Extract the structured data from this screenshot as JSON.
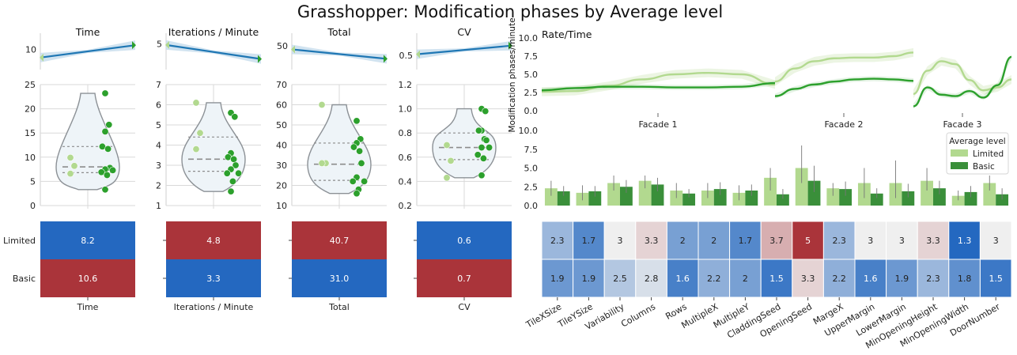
{
  "title": "Grasshopper: Modification phases by Average level",
  "colors": {
    "limited": "#b2d98f",
    "basic": "#2ca02c",
    "basic_bar": "#3a8f3a",
    "trend": "#1f77b4",
    "trend_band": "#c6dcec",
    "violin_fill": "#eef4f8",
    "violin_stroke": "#8c9196",
    "heat_red": "#aa343a",
    "heat_blue": "#2468c0",
    "heat_mid": "#efefef"
  },
  "chart_data": [
    {
      "id": "time",
      "type": "line",
      "title": "Time",
      "trend": {
        "x": [
          0,
          1
        ],
        "y": [
          9.2,
          10.4
        ]
      },
      "trend_ylim": [
        8.5,
        11.1
      ],
      "trend_yticks": [
        {
          "v": 10,
          "label": "10"
        }
      ],
      "violin_ylim": [
        0,
        25
      ],
      "violin_yticks": [
        "0",
        "5",
        "10",
        "15",
        "20",
        "25"
      ],
      "violin_tick_values": [
        0,
        5,
        10,
        15,
        20,
        25
      ],
      "violin_quartiles": [
        6.8,
        8.0,
        12.2
      ],
      "points_limited": [
        9.9,
        8.2,
        6.6
      ],
      "points_basic": [
        23.2,
        16.7,
        15.3,
        12.2,
        11.7,
        7.8,
        7.5,
        7.3,
        6.9,
        6.3,
        3.3
      ],
      "heat": {
        "rows": [
          "Limited",
          "Basic"
        ],
        "values": [
          8.2,
          10.6
        ],
        "labels": [
          "8.2",
          "10.6"
        ],
        "colors": [
          "#2468c0",
          "#aa343a"
        ]
      },
      "xlabel": "Time"
    },
    {
      "id": "ipm",
      "type": "line",
      "title": "Iterations / Minute",
      "trend": {
        "x": [
          0,
          1
        ],
        "y": [
          4.9,
          3.7
        ]
      },
      "trend_ylim": [
        3.2,
        5.5
      ],
      "trend_yticks": [
        {
          "v": 5,
          "label": "5"
        }
      ],
      "violin_ylim": [
        1,
        7
      ],
      "violin_yticks": [
        "1",
        "2",
        "3",
        "4",
        "5",
        "6",
        "7"
      ],
      "violin_tick_values": [
        1,
        2,
        3,
        4,
        5,
        6,
        7
      ],
      "violin_quartiles": [
        2.7,
        3.3,
        4.4
      ],
      "points_limited": [
        6.1,
        4.6,
        3.8
      ],
      "points_basic": [
        5.6,
        5.4,
        3.6,
        3.4,
        3.3,
        3.0,
        2.8,
        2.6,
        2.6,
        2.2,
        1.7
      ],
      "heat": {
        "rows": [
          "Limited",
          "Basic"
        ],
        "values": [
          4.8,
          3.3
        ],
        "labels": [
          "4.8",
          "3.3"
        ],
        "colors": [
          "#aa343a",
          "#2468c0"
        ]
      },
      "xlabel": "Iterations / Minute"
    },
    {
      "id": "total",
      "type": "line",
      "title": "Total",
      "trend": {
        "x": [
          0,
          1
        ],
        "y": [
          47.5,
          40.5
        ]
      },
      "trend_ylim": [
        36,
        56
      ],
      "trend_yticks": [
        {
          "v": 50,
          "label": "50"
        }
      ],
      "violin_ylim": [
        10,
        70
      ],
      "violin_yticks": [
        "10",
        "20",
        "30",
        "40",
        "50",
        "60",
        "70"
      ],
      "violin_tick_values": [
        10,
        20,
        30,
        40,
        50,
        60,
        70
      ],
      "violin_quartiles": [
        22.5,
        30.5,
        41.0
      ],
      "points_limited": [
        60.0,
        31.0,
        31.0
      ],
      "points_basic": [
        52.0,
        43.0,
        41.0,
        39.0,
        37.0,
        31.0,
        24.0,
        22.0,
        22.0,
        18.0,
        16.0
      ],
      "heat": {
        "rows": [
          "Limited",
          "Basic"
        ],
        "values": [
          40.7,
          31.0
        ],
        "labels": [
          "40.7",
          "31.0"
        ],
        "colors": [
          "#aa343a",
          "#2468c0"
        ]
      },
      "xlabel": "Total"
    },
    {
      "id": "cv",
      "type": "line",
      "title": "CV",
      "trend": {
        "x": [
          0,
          1
        ],
        "y": [
          0.51,
          0.6
        ]
      },
      "trend_ylim": [
        0.4,
        0.68
      ],
      "trend_yticks": [
        {
          "v": 0.5,
          "label": "0.5"
        }
      ],
      "violin_ylim": [
        0.2,
        1.2
      ],
      "violin_yticks": [
        "0.2",
        "0.4",
        "0.6",
        "0.8",
        "1.0",
        "1.2"
      ],
      "violin_tick_values": [
        0.2,
        0.4,
        0.6,
        0.8,
        1.0,
        1.2
      ],
      "violin_quartiles": [
        0.58,
        0.68,
        0.8
      ],
      "points_limited": [
        0.7,
        0.57,
        0.43
      ],
      "points_basic": [
        1.0,
        0.98,
        0.82,
        0.82,
        0.75,
        0.74,
        0.68,
        0.68,
        0.62,
        0.59,
        0.45
      ],
      "heat": {
        "rows": [
          "Limited",
          "Basic"
        ],
        "values": [
          0.6,
          0.7
        ],
        "labels": [
          "0.6",
          "0.7"
        ],
        "colors": [
          "#2468c0",
          "#aa343a"
        ]
      },
      "xlabel": "CV"
    },
    {
      "id": "rate",
      "type": "line",
      "title": "Rate/Time",
      "ylabel": "Modification phases/minute",
      "ylim": [
        0,
        10
      ],
      "yticks": [
        "0.0",
        "2.5",
        "5.0",
        "7.5",
        "10.0"
      ],
      "ytick_values": [
        0,
        2.5,
        5.0,
        7.5,
        10.0
      ],
      "facets": [
        {
          "label": "Facade 1",
          "limited": [
            2.6,
            2.7,
            3.4,
            4.3,
            5.0,
            5.2,
            5.0,
            3.6
          ],
          "basic": [
            2.8,
            3.1,
            3.3,
            3.3,
            3.2,
            3.2,
            3.3,
            3.8
          ]
        },
        {
          "label": "Facade 2",
          "limited": [
            4.0,
            5.8,
            6.8,
            7.2,
            7.3,
            7.3,
            7.5,
            8.0
          ],
          "basic": [
            2.0,
            3.0,
            3.6,
            4.0,
            4.3,
            4.4,
            4.3,
            4.1
          ]
        },
        {
          "label": "Facade 3",
          "limited": [
            2.3,
            5.5,
            6.8,
            6.4,
            4.2,
            2.8,
            3.2,
            4.3
          ],
          "basic": [
            0.6,
            3.2,
            2.2,
            2.0,
            2.7,
            1.8,
            3.5,
            7.4
          ]
        }
      ]
    },
    {
      "id": "params",
      "type": "bar",
      "ylim": [
        0,
        10
      ],
      "yticks": [
        "0.0",
        "2.5",
        "5.0",
        "7.5",
        "10.0"
      ],
      "ytick_values": [
        0,
        2.5,
        5.0,
        7.5,
        10.0
      ],
      "categories": [
        "TileXSize",
        "TileYSize",
        "Variability",
        "Columns",
        "Rows",
        "MultipleX",
        "MultipleY",
        "CladdingSeed",
        "OpeningSeed",
        "MargeX",
        "UpperMargin",
        "LowerMargin",
        "MinOpeningHeight",
        "MinOpeningWidth",
        "DoorNumber"
      ],
      "series": [
        {
          "name": "Limited",
          "values": [
            2.3,
            1.7,
            3.0,
            3.3,
            2.0,
            2.0,
            1.7,
            3.7,
            5.0,
            2.3,
            3.0,
            3.0,
            3.3,
            1.3,
            3.0
          ],
          "err": [
            [
              1.3,
              3.3
            ],
            [
              0.7,
              2.7
            ],
            [
              2.0,
              4.0
            ],
            [
              2.3,
              4.0
            ],
            [
              1.0,
              3.0
            ],
            [
              1.0,
              3.0
            ],
            [
              0.7,
              2.7
            ],
            [
              2.0,
              5.0
            ],
            [
              3.0,
              8.0
            ],
            [
              1.3,
              3.0
            ],
            [
              1.0,
              5.0
            ],
            [
              1.0,
              6.0
            ],
            [
              2.0,
              5.0
            ],
            [
              0.7,
              2.0
            ],
            [
              2.0,
              4.0
            ]
          ]
        },
        {
          "name": "Basic",
          "values": [
            1.9,
            1.9,
            2.5,
            2.8,
            1.6,
            2.2,
            2.0,
            1.5,
            3.3,
            2.2,
            1.6,
            1.9,
            2.3,
            1.8,
            1.5
          ],
          "err": [
            [
              1.3,
              2.6
            ],
            [
              1.2,
              2.6
            ],
            [
              1.7,
              3.4
            ],
            [
              1.9,
              3.7
            ],
            [
              1.1,
              2.2
            ],
            [
              1.4,
              3.1
            ],
            [
              1.3,
              2.8
            ],
            [
              0.9,
              2.2
            ],
            [
              1.8,
              5.3
            ],
            [
              1.3,
              3.2
            ],
            [
              1.0,
              2.3
            ],
            [
              1.1,
              2.9
            ],
            [
              1.5,
              3.3
            ],
            [
              1.1,
              2.6
            ],
            [
              0.8,
              2.3
            ]
          ]
        }
      ],
      "legend": {
        "title": "Average level",
        "placement": "top-right"
      },
      "heat_rows": [
        "Limited",
        "Basic"
      ],
      "heat_labels": [
        [
          "2.3",
          "1.7",
          "3",
          "3.3",
          "2",
          "2",
          "1.7",
          "3.7",
          "5",
          "2.3",
          "3",
          "3",
          "3.3",
          "1.3",
          "3"
        ],
        [
          "1.9",
          "1.9",
          "2.5",
          "2.8",
          "1.6",
          "2.2",
          "2",
          "1.5",
          "3.3",
          "2.2",
          "1.6",
          "1.9",
          "2.3",
          "1.8",
          "1.5"
        ]
      ]
    }
  ]
}
